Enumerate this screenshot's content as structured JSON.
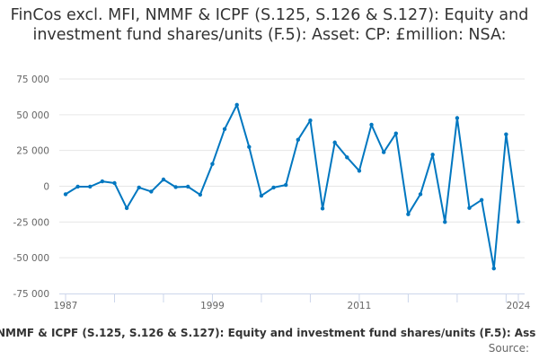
{
  "chart_data": {
    "type": "line",
    "title": "FinCos excl. MFI, NMMF & ICPF (S.125, S.126 & S.127): Equity and investment fund shares/units (F.5): Asset: CP: £million: NSA:",
    "x": [
      1987,
      1988,
      1989,
      1990,
      1991,
      1992,
      1993,
      1994,
      1995,
      1996,
      1997,
      1998,
      1999,
      2000,
      2001,
      2002,
      2003,
      2004,
      2005,
      2006,
      2007,
      2008,
      2009,
      2010,
      2011,
      2012,
      2013,
      2014,
      2015,
      2016,
      2017,
      2018,
      2019,
      2020,
      2021,
      2022,
      2023,
      2024
    ],
    "series": [
      {
        "values": [
          -5600,
          -300,
          -300,
          3400,
          2200,
          -15300,
          -900,
          -3700,
          4700,
          -600,
          -300,
          -5900,
          15600,
          40000,
          56900,
          27500,
          -6600,
          -900,
          900,
          32500,
          46000,
          -15600,
          30600,
          20200,
          10800,
          43000,
          23800,
          36900,
          -19600,
          -5600,
          22100,
          -25000,
          47700,
          -15200,
          -9600,
          -57500,
          36300,
          -24800
        ],
        "color": "#0077c0"
      }
    ],
    "xlim": [
      1987,
      2024
    ],
    "ylim": [
      -75000,
      75000
    ],
    "x_ticks": [
      "1987",
      "1999",
      "2011",
      "2024"
    ],
    "x_tick_values": [
      1987,
      1999,
      2011,
      2024
    ],
    "y_ticks": [
      "75 000",
      "50 000",
      "25 000",
      "0",
      "-25 000",
      "-50 000",
      "-75 000"
    ],
    "y_tick_values": [
      75000,
      50000,
      25000,
      0,
      -25000,
      -50000,
      -75000
    ],
    "grid": "horizontal",
    "legend_text": "NMMF & ICPF (S.125, S.126 & S.127): Equity and investment fund shares/units (F.5): Ass",
    "legend_placement": "bottom",
    "source_label": "Source:"
  }
}
